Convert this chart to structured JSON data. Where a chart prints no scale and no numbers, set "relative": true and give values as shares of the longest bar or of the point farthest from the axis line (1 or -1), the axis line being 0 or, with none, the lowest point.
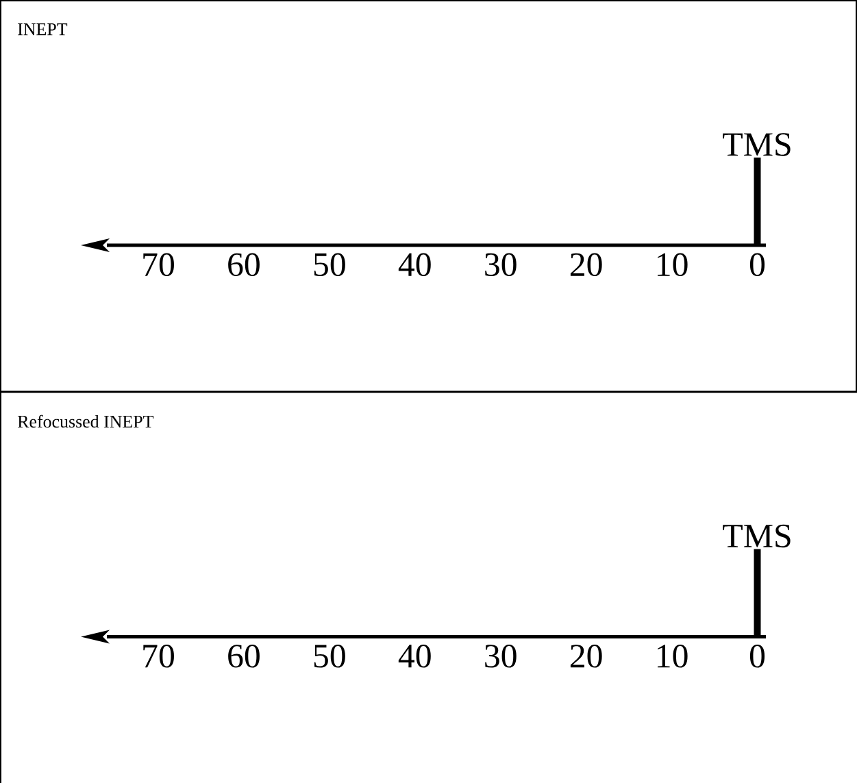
{
  "chart_data": [
    {
      "type": "bar",
      "title": "INEPT",
      "x": [
        0
      ],
      "values": [
        1
      ],
      "relative": true,
      "color": "#000000",
      "xlim": [
        76,
        -1
      ],
      "xticks": [
        70,
        60,
        50,
        40,
        30,
        20,
        10,
        0
      ],
      "annotations": [
        {
          "text": "TMS",
          "x": 0,
          "y": 1
        }
      ]
    },
    {
      "type": "bar",
      "title": "Refocussed INEPT",
      "x": [
        0
      ],
      "values": [
        1
      ],
      "relative": true,
      "color": "#000000",
      "xlim": [
        76,
        -1
      ],
      "xticks": [
        70,
        60,
        50,
        40,
        30,
        20,
        10,
        0
      ],
      "annotations": [
        {
          "text": "TMS",
          "x": 0,
          "y": 1
        }
      ]
    }
  ]
}
